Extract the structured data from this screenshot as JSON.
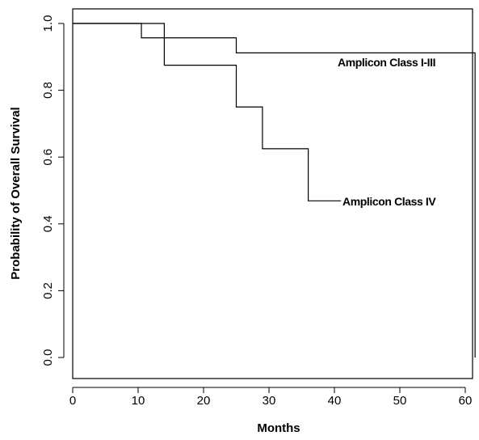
{
  "chart_data": {
    "type": "line",
    "title": "",
    "xlabel": "Months",
    "ylabel": "Probability of Overall Survival",
    "xlim": [
      0,
      62
    ],
    "ylim": [
      0,
      1.0
    ],
    "xticks": [
      0,
      10,
      20,
      30,
      40,
      50,
      60
    ],
    "xtick_labels": [
      "0",
      "10",
      "20",
      "30",
      "40",
      "50",
      "60"
    ],
    "yticks": [
      0.0,
      0.2,
      0.4,
      0.6,
      0.8,
      1.0
    ],
    "ytick_labels": [
      "0.0",
      "0.2",
      "0.4",
      "0.6",
      "0.8",
      "1.0"
    ],
    "grid": false,
    "step": true,
    "series": [
      {
        "name": "Amplicon Class I-III",
        "x": [
          0,
          10.5,
          25,
          61.5,
          61.5
        ],
        "y": [
          1.0,
          0.957,
          0.912,
          0.912,
          0.0
        ]
      },
      {
        "name": "Amplicon Class IV",
        "x": [
          0,
          14,
          25,
          29,
          36,
          41
        ],
        "y": [
          1.0,
          0.875,
          0.75,
          0.625,
          0.469,
          0.469
        ]
      }
    ]
  }
}
